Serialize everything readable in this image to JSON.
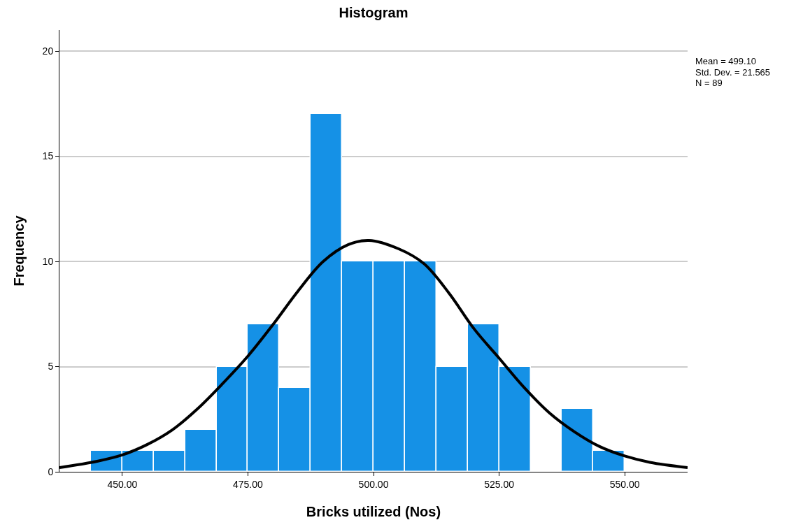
{
  "chart_data": {
    "type": "histogram",
    "title": "Histogram",
    "xlabel": "Bricks utilized (Nos)",
    "ylabel": "Frequency",
    "bins": [
      443.75,
      450,
      456.25,
      462.5,
      468.75,
      475,
      481.25,
      487.5,
      493.75,
      500,
      506.25,
      512.5,
      518.75,
      525,
      531.25,
      537.5,
      543.75,
      550
    ],
    "values": [
      1,
      1,
      1,
      2,
      5,
      7,
      4,
      17,
      10,
      10,
      10,
      5,
      7,
      5,
      0,
      3,
      1
    ],
    "color": "#1591e6",
    "series": [
      {
        "type": "line",
        "color": "#000000",
        "x": [
          437.5,
          445,
          450,
          455,
          460,
          465,
          470,
          475,
          480,
          485,
          490,
          495,
          499.1,
          505,
          510,
          515,
          520,
          525,
          530,
          535,
          540,
          545,
          550,
          555,
          562.5
        ],
        "values": [
          0.2,
          0.5,
          0.8,
          1.3,
          2.0,
          3.0,
          4.2,
          5.5,
          7.0,
          8.6,
          10.0,
          10.8,
          11.0,
          10.6,
          9.9,
          8.5,
          6.8,
          5.4,
          4.0,
          2.8,
          1.9,
          1.2,
          0.75,
          0.45,
          0.2
        ]
      }
    ],
    "xlim": [
      437.5,
      562.5
    ],
    "ylim": [
      0,
      21
    ],
    "xticks": [
      {
        "value": 450,
        "label": "450.00"
      },
      {
        "value": 475,
        "label": "475.00"
      },
      {
        "value": 500,
        "label": "500.00"
      },
      {
        "value": 525,
        "label": "525.00"
      },
      {
        "value": 550,
        "label": "550.00"
      }
    ],
    "yticks": [
      0,
      5,
      10,
      15,
      20
    ],
    "grid": "y",
    "annotations": [
      "Mean = 499.10",
      "Std. Dev. = 21.565",
      "N = 89"
    ]
  }
}
